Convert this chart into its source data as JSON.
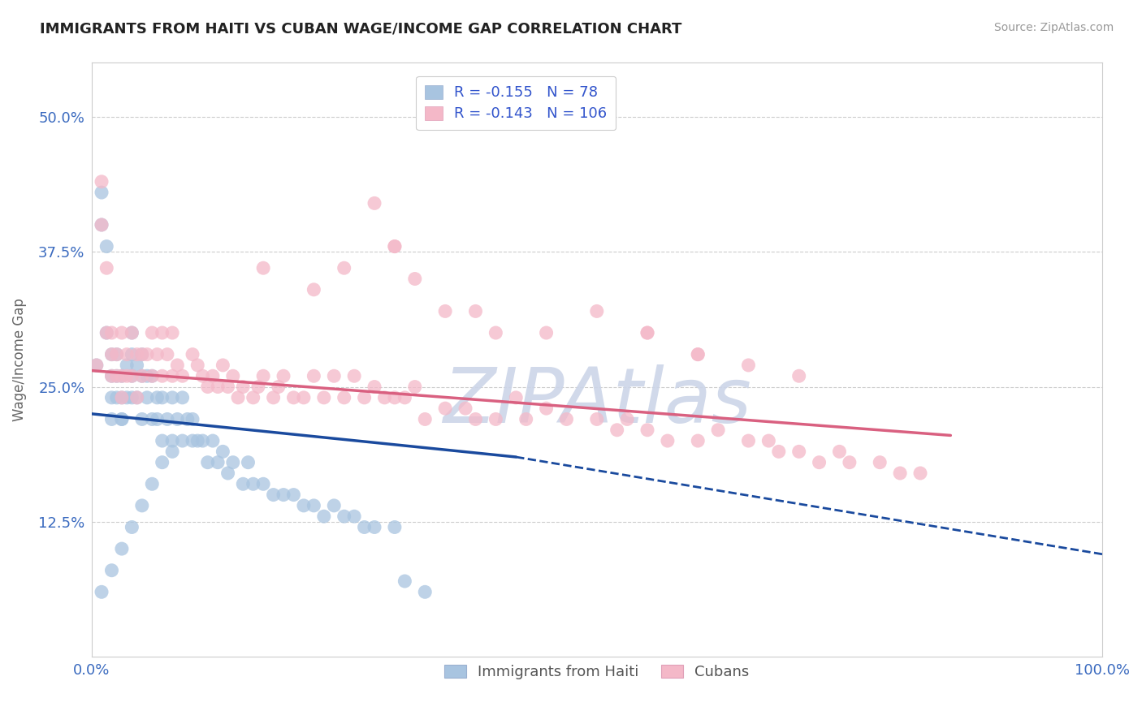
{
  "title": "IMMIGRANTS FROM HAITI VS CUBAN WAGE/INCOME GAP CORRELATION CHART",
  "source": "Source: ZipAtlas.com",
  "ylabel": "Wage/Income Gap",
  "xlabel": "",
  "xlim": [
    0.0,
    1.0
  ],
  "ylim": [
    0.0,
    0.55
  ],
  "yticks": [
    0.125,
    0.25,
    0.375,
    0.5
  ],
  "ytick_labels": [
    "12.5%",
    "25.0%",
    "37.5%",
    "50.0%"
  ],
  "xticks": [
    0.0,
    1.0
  ],
  "xtick_labels": [
    "0.0%",
    "100.0%"
  ],
  "haiti_color": "#a8c4e0",
  "cuba_color": "#f4b8c8",
  "haiti_line_color": "#1a4a9e",
  "cuba_line_color": "#d96080",
  "haiti_R": -0.155,
  "haiti_N": 78,
  "cuba_R": -0.143,
  "cuba_N": 106,
  "haiti_label": "Immigrants from Haiti",
  "cuba_label": "Cubans",
  "background_color": "#ffffff",
  "grid_color": "#cccccc",
  "watermark": "ZIPAtlas",
  "watermark_color": "#ccd5e8",
  "haiti_line_x0": 0.0,
  "haiti_line_y0": 0.225,
  "haiti_line_x1": 0.42,
  "haiti_line_y1": 0.185,
  "haiti_line_solid_end": 0.42,
  "haiti_line_dash_end": 1.0,
  "haiti_line_dash_y_end": 0.095,
  "cuba_line_x0": 0.0,
  "cuba_line_y0": 0.265,
  "cuba_line_x1": 0.85,
  "cuba_line_y1": 0.205,
  "haiti_scatter_x": [
    0.005,
    0.01,
    0.01,
    0.015,
    0.015,
    0.02,
    0.02,
    0.02,
    0.02,
    0.025,
    0.025,
    0.025,
    0.03,
    0.03,
    0.03,
    0.03,
    0.035,
    0.035,
    0.04,
    0.04,
    0.04,
    0.04,
    0.045,
    0.045,
    0.05,
    0.05,
    0.05,
    0.055,
    0.055,
    0.06,
    0.06,
    0.065,
    0.065,
    0.07,
    0.07,
    0.075,
    0.08,
    0.08,
    0.085,
    0.09,
    0.09,
    0.095,
    0.1,
    0.1,
    0.105,
    0.11,
    0.115,
    0.12,
    0.125,
    0.13,
    0.135,
    0.14,
    0.15,
    0.155,
    0.16,
    0.17,
    0.18,
    0.19,
    0.2,
    0.21,
    0.22,
    0.23,
    0.24,
    0.25,
    0.26,
    0.27,
    0.28,
    0.3,
    0.31,
    0.33,
    0.01,
    0.02,
    0.03,
    0.04,
    0.05,
    0.06,
    0.07,
    0.08
  ],
  "haiti_scatter_y": [
    0.27,
    0.43,
    0.4,
    0.3,
    0.38,
    0.26,
    0.24,
    0.22,
    0.28,
    0.26,
    0.24,
    0.28,
    0.22,
    0.24,
    0.22,
    0.26,
    0.24,
    0.27,
    0.28,
    0.26,
    0.24,
    0.3,
    0.24,
    0.27,
    0.26,
    0.28,
    0.22,
    0.26,
    0.24,
    0.22,
    0.26,
    0.24,
    0.22,
    0.2,
    0.24,
    0.22,
    0.2,
    0.24,
    0.22,
    0.2,
    0.24,
    0.22,
    0.2,
    0.22,
    0.2,
    0.2,
    0.18,
    0.2,
    0.18,
    0.19,
    0.17,
    0.18,
    0.16,
    0.18,
    0.16,
    0.16,
    0.15,
    0.15,
    0.15,
    0.14,
    0.14,
    0.13,
    0.14,
    0.13,
    0.13,
    0.12,
    0.12,
    0.12,
    0.07,
    0.06,
    0.06,
    0.08,
    0.1,
    0.12,
    0.14,
    0.16,
    0.18,
    0.19
  ],
  "cuba_scatter_x": [
    0.005,
    0.01,
    0.01,
    0.015,
    0.015,
    0.02,
    0.02,
    0.02,
    0.025,
    0.025,
    0.03,
    0.03,
    0.03,
    0.035,
    0.035,
    0.04,
    0.04,
    0.045,
    0.045,
    0.05,
    0.05,
    0.055,
    0.06,
    0.06,
    0.065,
    0.07,
    0.07,
    0.075,
    0.08,
    0.08,
    0.085,
    0.09,
    0.1,
    0.105,
    0.11,
    0.115,
    0.12,
    0.125,
    0.13,
    0.135,
    0.14,
    0.145,
    0.15,
    0.16,
    0.165,
    0.17,
    0.18,
    0.185,
    0.19,
    0.2,
    0.21,
    0.22,
    0.23,
    0.24,
    0.25,
    0.26,
    0.27,
    0.28,
    0.29,
    0.3,
    0.31,
    0.32,
    0.33,
    0.35,
    0.37,
    0.38,
    0.4,
    0.42,
    0.43,
    0.45,
    0.47,
    0.5,
    0.52,
    0.53,
    0.55,
    0.57,
    0.6,
    0.62,
    0.65,
    0.67,
    0.68,
    0.7,
    0.72,
    0.74,
    0.75,
    0.78,
    0.8,
    0.82,
    0.55,
    0.6,
    0.38,
    0.4,
    0.45,
    0.5,
    0.55,
    0.6,
    0.65,
    0.7,
    0.28,
    0.3,
    0.32,
    0.35,
    0.17,
    0.22,
    0.25,
    0.3
  ],
  "cuba_scatter_y": [
    0.27,
    0.44,
    0.4,
    0.3,
    0.36,
    0.26,
    0.28,
    0.3,
    0.26,
    0.28,
    0.24,
    0.26,
    0.3,
    0.28,
    0.26,
    0.3,
    0.26,
    0.28,
    0.24,
    0.28,
    0.26,
    0.28,
    0.26,
    0.3,
    0.28,
    0.3,
    0.26,
    0.28,
    0.26,
    0.3,
    0.27,
    0.26,
    0.28,
    0.27,
    0.26,
    0.25,
    0.26,
    0.25,
    0.27,
    0.25,
    0.26,
    0.24,
    0.25,
    0.24,
    0.25,
    0.26,
    0.24,
    0.25,
    0.26,
    0.24,
    0.24,
    0.26,
    0.24,
    0.26,
    0.24,
    0.26,
    0.24,
    0.25,
    0.24,
    0.24,
    0.24,
    0.25,
    0.22,
    0.23,
    0.23,
    0.22,
    0.22,
    0.24,
    0.22,
    0.23,
    0.22,
    0.22,
    0.21,
    0.22,
    0.21,
    0.2,
    0.2,
    0.21,
    0.2,
    0.2,
    0.19,
    0.19,
    0.18,
    0.19,
    0.18,
    0.18,
    0.17,
    0.17,
    0.3,
    0.28,
    0.32,
    0.3,
    0.3,
    0.32,
    0.3,
    0.28,
    0.27,
    0.26,
    0.42,
    0.38,
    0.35,
    0.32,
    0.36,
    0.34,
    0.36,
    0.38
  ]
}
